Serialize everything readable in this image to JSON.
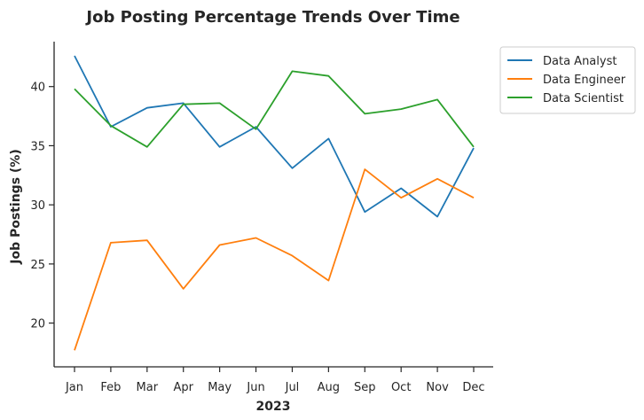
{
  "chart_data": {
    "type": "line",
    "title": "Job Posting Percentage Trends Over Time",
    "xlabel": "2023",
    "ylabel": "Job Postings (%)",
    "categories": [
      "Jan",
      "Feb",
      "Mar",
      "Apr",
      "May",
      "Jun",
      "Jul",
      "Aug",
      "Sep",
      "Oct",
      "Nov",
      "Dec"
    ],
    "ylim": [
      16.3,
      43.8
    ],
    "yticks": [
      20,
      25,
      30,
      35,
      40
    ],
    "grid": false,
    "legend_position": "outside-top-right",
    "series": [
      {
        "name": "Data Analyst",
        "color": "#1f77b4",
        "values": [
          42.6,
          36.6,
          38.2,
          38.6,
          34.9,
          36.6,
          33.1,
          35.6,
          29.4,
          31.4,
          29.0,
          34.8
        ]
      },
      {
        "name": "Data Engineer",
        "color": "#ff7f0e",
        "values": [
          17.7,
          26.8,
          27.0,
          22.9,
          26.6,
          27.2,
          25.7,
          23.6,
          33.0,
          30.6,
          32.2,
          30.6
        ]
      },
      {
        "name": "Data Scientist",
        "color": "#2ca02c",
        "values": [
          39.8,
          36.7,
          34.9,
          38.5,
          38.6,
          36.4,
          41.3,
          40.9,
          37.7,
          38.1,
          38.9,
          34.9
        ]
      }
    ]
  }
}
